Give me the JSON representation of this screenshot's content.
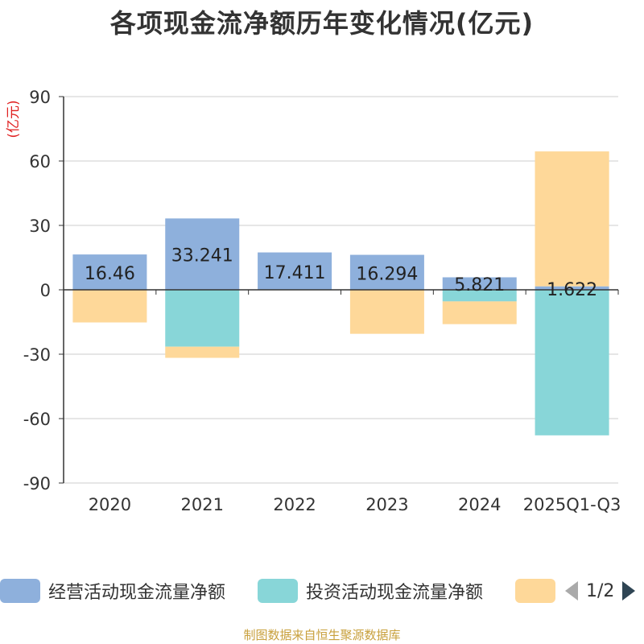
{
  "chart_data": {
    "type": "bar",
    "stacked": true,
    "title": "各项现金流净额历年变化情况(亿元)",
    "ylabel": "(亿元)",
    "ylim": [
      -90,
      90
    ],
    "yticks": [
      90,
      60,
      30,
      0,
      -30,
      -60,
      -90
    ],
    "categories": [
      "2020",
      "2021",
      "2022",
      "2023",
      "2024",
      "2025Q1-Q3"
    ],
    "series": [
      {
        "name": "经营活动现金流量净额",
        "color": "#8eb0dc",
        "values": [
          16.46,
          33.241,
          17.411,
          16.294,
          5.821,
          1.622
        ],
        "labels": [
          "16.46",
          "33.241",
          "17.411",
          "16.294",
          "5.821",
          "1.622"
        ]
      },
      {
        "name": "投资活动现金流量净额",
        "color": "#88d6d8",
        "values": [
          0,
          -26.5,
          0,
          0,
          -5.4,
          -67.8
        ]
      },
      {
        "name": "",
        "color": "#fed899",
        "values": [
          -15.2,
          -5.2,
          0,
          -20.5,
          -10.6,
          62.8
        ]
      }
    ],
    "legend_position": "bottom",
    "grid": true
  },
  "legend_page": "1/2",
  "source_note": "制图数据来自恒生聚源数据库"
}
